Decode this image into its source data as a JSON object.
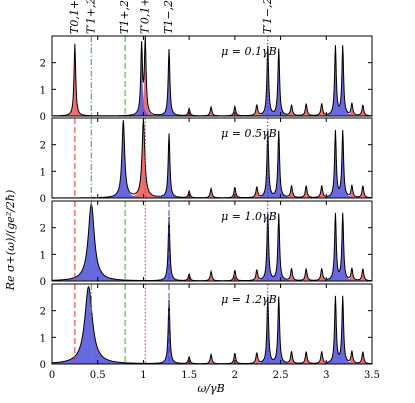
{
  "chart_data": {
    "type": "area",
    "x": {
      "min": 0,
      "max": 3.5,
      "ticks": [
        0,
        0.5,
        1,
        1.5,
        2,
        2.5,
        3,
        3.5
      ],
      "tick_labels": [
        "0",
        "0.5",
        "1",
        "1.5",
        "2",
        "2.5",
        "3",
        "3.5"
      ]
    },
    "y": {
      "min": 0,
      "max": 3,
      "ticks": [
        0,
        1,
        2
      ],
      "tick_labels": [
        "0",
        "1",
        "2"
      ]
    },
    "xlabel": "ω/γB",
    "ylabel": "Re σ+(ω)/(ge²/2ħ)",
    "colors": {
      "red_fill": "#f26d6d",
      "blue_fill": "#5b5be0",
      "red_line": "#e03030",
      "green_line": "#22bb22",
      "blue_line": "#3a3aee"
    },
    "top_labels": [
      {
        "text": "T0,1+",
        "x": 0.25
      },
      {
        "text": "T′1+,2+",
        "x": 0.43
      },
      {
        "text": "T1+,2+",
        "x": 0.8
      },
      {
        "text": "T′0,1+",
        "x": 1.02
      },
      {
        "text": "T1−,2+",
        "x": 1.28
      },
      {
        "text": "T′1−,2+",
        "x": 2.36
      }
    ],
    "panels": [
      {
        "mu_label": "μ = 0.1γB",
        "red_peaks": [
          {
            "x0": 0.25,
            "h": 2.7,
            "w": 0.011
          },
          {
            "x0": 1.02,
            "h": 2.8,
            "w": 0.011
          },
          {
            "x0": 1.5,
            "h": 0.27,
            "w": 0.011
          },
          {
            "x0": 1.74,
            "h": 0.33,
            "w": 0.011
          },
          {
            "x0": 2.0,
            "h": 0.35,
            "w": 0.011
          },
          {
            "x0": 2.24,
            "h": 0.4,
            "w": 0.011
          },
          {
            "x0": 2.62,
            "h": 0.4,
            "w": 0.011
          },
          {
            "x0": 2.78,
            "h": 0.45,
            "w": 0.011
          },
          {
            "x0": 2.95,
            "h": 0.45,
            "w": 0.011
          },
          {
            "x0": 3.28,
            "h": 0.45,
            "w": 0.011
          },
          {
            "x0": 3.4,
            "h": 0.4,
            "w": 0.011
          }
        ],
        "blue_peaks": [
          {
            "x0": 0.98,
            "h": 2.6,
            "w": 0.011
          },
          {
            "x0": 1.28,
            "h": 2.5,
            "w": 0.011
          },
          {
            "x0": 2.36,
            "h": 2.6,
            "w": 0.011
          },
          {
            "x0": 2.48,
            "h": 2.5,
            "w": 0.011
          },
          {
            "x0": 3.1,
            "h": 2.6,
            "w": 0.011
          },
          {
            "x0": 3.18,
            "h": 2.6,
            "w": 0.011
          }
        ]
      },
      {
        "mu_label": "μ = 0.5γB",
        "red_peaks": [
          {
            "x0": 1.0,
            "h": 2.9,
            "w": 0.018
          },
          {
            "x0": 1.5,
            "h": 0.25,
            "w": 0.011
          },
          {
            "x0": 1.74,
            "h": 0.35,
            "w": 0.011
          },
          {
            "x0": 2.0,
            "h": 0.4,
            "w": 0.011
          },
          {
            "x0": 2.24,
            "h": 0.4,
            "w": 0.011
          },
          {
            "x0": 2.62,
            "h": 0.45,
            "w": 0.011
          },
          {
            "x0": 2.78,
            "h": 0.45,
            "w": 0.011
          },
          {
            "x0": 2.95,
            "h": 0.45,
            "w": 0.011
          },
          {
            "x0": 3.28,
            "h": 0.45,
            "w": 0.011
          },
          {
            "x0": 3.4,
            "h": 0.45,
            "w": 0.011
          }
        ],
        "blue_peaks": [
          {
            "x0": 0.78,
            "h": 2.9,
            "w": 0.018
          },
          {
            "x0": 1.28,
            "h": 2.4,
            "w": 0.011
          },
          {
            "x0": 2.36,
            "h": 2.5,
            "w": 0.011
          },
          {
            "x0": 2.48,
            "h": 2.5,
            "w": 0.011
          },
          {
            "x0": 3.1,
            "h": 2.5,
            "w": 0.011
          },
          {
            "x0": 3.18,
            "h": 2.5,
            "w": 0.011
          }
        ]
      },
      {
        "mu_label": "μ = 1.0γB",
        "red_peaks": [
          {
            "x0": 1.5,
            "h": 0.25,
            "w": 0.011
          },
          {
            "x0": 1.74,
            "h": 0.35,
            "w": 0.011
          },
          {
            "x0": 2.0,
            "h": 0.4,
            "w": 0.011
          },
          {
            "x0": 2.24,
            "h": 0.4,
            "w": 0.011
          },
          {
            "x0": 2.62,
            "h": 0.45,
            "w": 0.011
          },
          {
            "x0": 2.78,
            "h": 0.45,
            "w": 0.011
          },
          {
            "x0": 2.95,
            "h": 0.45,
            "w": 0.011
          },
          {
            "x0": 3.28,
            "h": 0.45,
            "w": 0.011
          },
          {
            "x0": 3.4,
            "h": 0.45,
            "w": 0.011
          }
        ],
        "blue_peaks": [
          {
            "x0": 0.43,
            "h": 2.9,
            "w": 0.04
          },
          {
            "x0": 1.28,
            "h": 2.4,
            "w": 0.011
          },
          {
            "x0": 2.36,
            "h": 2.5,
            "w": 0.011
          },
          {
            "x0": 2.48,
            "h": 2.5,
            "w": 0.011
          },
          {
            "x0": 3.1,
            "h": 2.5,
            "w": 0.011
          },
          {
            "x0": 3.18,
            "h": 2.5,
            "w": 0.011
          }
        ]
      },
      {
        "mu_label": "μ = 1.2γB",
        "red_peaks": [
          {
            "x0": 1.5,
            "h": 0.25,
            "w": 0.011
          },
          {
            "x0": 1.74,
            "h": 0.35,
            "w": 0.011
          },
          {
            "x0": 2.0,
            "h": 0.4,
            "w": 0.011
          },
          {
            "x0": 2.24,
            "h": 0.4,
            "w": 0.011
          },
          {
            "x0": 2.62,
            "h": 0.45,
            "w": 0.011
          },
          {
            "x0": 2.78,
            "h": 0.45,
            "w": 0.011
          },
          {
            "x0": 2.95,
            "h": 0.45,
            "w": 0.011
          },
          {
            "x0": 3.28,
            "h": 0.45,
            "w": 0.011
          },
          {
            "x0": 3.4,
            "h": 0.45,
            "w": 0.011
          }
        ],
        "blue_peaks": [
          {
            "x0": 0.4,
            "h": 2.9,
            "w": 0.05
          },
          {
            "x0": 1.28,
            "h": 2.4,
            "w": 0.011
          },
          {
            "x0": 2.36,
            "h": 2.5,
            "w": 0.011
          },
          {
            "x0": 2.48,
            "h": 2.5,
            "w": 0.011
          },
          {
            "x0": 3.1,
            "h": 2.5,
            "w": 0.011
          },
          {
            "x0": 3.18,
            "h": 2.5,
            "w": 0.011
          }
        ]
      }
    ],
    "vlines": [
      {
        "x": 0.25,
        "color": "red_line",
        "dash": "dashed",
        "panels": [
          1,
          2,
          3
        ]
      },
      {
        "x": 0.43,
        "color": "green_line",
        "dash": "dashdot",
        "panels": [
          0,
          1,
          2,
          3
        ]
      },
      {
        "x": 0.8,
        "color": "green_line",
        "dash": "dashed",
        "panels": [
          0,
          2,
          3
        ]
      },
      {
        "x": 1.02,
        "color": "red_line",
        "dash": "dotted",
        "panels": [
          1,
          2,
          3
        ]
      },
      {
        "x": 1.28,
        "color": "blue_line",
        "dash": "dashed",
        "panels": [
          2,
          3
        ]
      },
      {
        "x": 2.36,
        "color": "blue_line",
        "dash": "dotted",
        "panels": [
          0,
          1,
          2,
          3
        ]
      }
    ]
  }
}
